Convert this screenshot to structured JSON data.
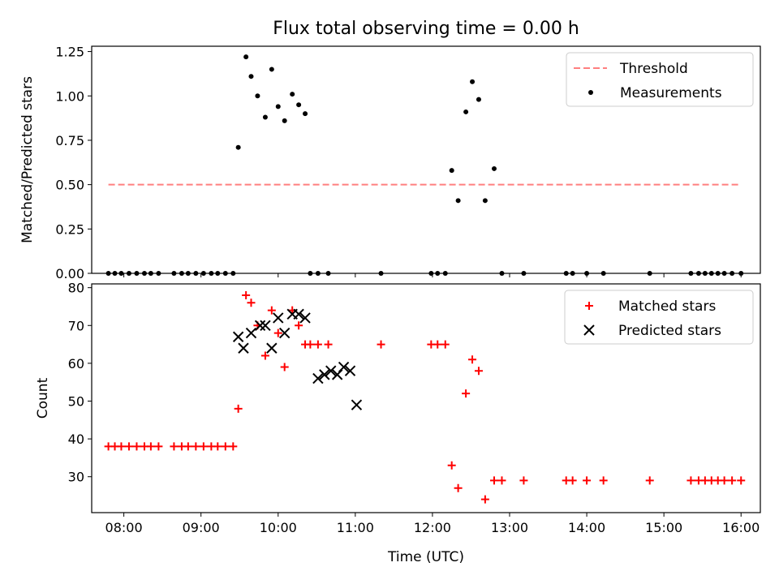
{
  "chart_data": [
    {
      "type": "scatter",
      "title": "Flux total observing time = 0.00 h",
      "xlabel": "",
      "ylabel": "Matched/Predicted stars",
      "xlim": [
        "07:35",
        "16:15"
      ],
      "ylim": [
        0,
        1.28
      ],
      "yticks": [
        "0.00",
        "0.25",
        "0.50",
        "0.75",
        "1.00",
        "1.25"
      ],
      "ytick_values": [
        0,
        0.25,
        0.5,
        0.75,
        1.0,
        1.25
      ],
      "legend_position": "upper right",
      "series": [
        {
          "name": "Threshold",
          "kind": "dashed-line",
          "color": "#ff7f7f",
          "x": [
            "07:48",
            "16:00"
          ],
          "y": [
            0.5,
            0.5
          ]
        },
        {
          "name": "Measurements",
          "kind": "points",
          "color": "#000000",
          "x": [
            "07:48",
            "07:53",
            "07:58",
            "08:04",
            "08:10",
            "08:16",
            "08:21",
            "08:27",
            "08:39",
            "08:45",
            "08:50",
            "08:56",
            "09:02",
            "09:08",
            "09:13",
            "09:19",
            "09:25",
            "09:29",
            "09:35",
            "09:39",
            "09:44",
            "09:50",
            "09:55",
            "10:00",
            "10:05",
            "10:11",
            "10:16",
            "10:21",
            "10:25",
            "10:31",
            "10:39",
            "11:20",
            "11:59",
            "12:04",
            "12:10",
            "12:15",
            "12:20",
            "12:26",
            "12:31",
            "12:36",
            "12:41",
            "12:48",
            "12:54",
            "13:11",
            "13:44",
            "13:49",
            "14:00",
            "14:13",
            "14:49",
            "15:21",
            "15:27",
            "15:32",
            "15:37",
            "15:42",
            "15:47",
            "15:53",
            "16:00"
          ],
          "y": [
            0,
            0,
            0,
            0,
            0,
            0,
            0,
            0,
            0,
            0,
            0,
            0,
            0,
            0,
            0,
            0,
            0,
            0.71,
            1.22,
            1.11,
            1.0,
            0.88,
            1.15,
            0.94,
            0.86,
            1.01,
            0.95,
            0.9,
            0,
            0,
            0,
            0,
            0,
            0,
            0,
            0.58,
            0.41,
            0.91,
            1.08,
            0.98,
            0.41,
            0.59,
            0,
            0,
            0,
            0,
            0,
            0,
            0,
            0,
            0,
            0,
            0,
            0,
            0,
            0,
            0
          ]
        }
      ]
    },
    {
      "type": "scatter",
      "title": "",
      "xlabel": "Time (UTC)",
      "ylabel": "Count",
      "xlim": [
        "07:35",
        "16:15"
      ],
      "ylim": [
        20.5,
        81
      ],
      "xticks": [
        "08:00",
        "09:00",
        "10:00",
        "11:00",
        "12:00",
        "13:00",
        "14:00",
        "15:00",
        "16:00"
      ],
      "yticks": [
        "30",
        "40",
        "50",
        "60",
        "70",
        "80"
      ],
      "ytick_values": [
        30,
        40,
        50,
        60,
        70,
        80
      ],
      "legend_position": "upper right",
      "series": [
        {
          "name": "Matched stars",
          "kind": "plus",
          "color": "#ff0000",
          "x": [
            "07:48",
            "07:53",
            "07:58",
            "08:04",
            "08:10",
            "08:16",
            "08:21",
            "08:27",
            "08:39",
            "08:45",
            "08:50",
            "08:56",
            "09:02",
            "09:08",
            "09:13",
            "09:19",
            "09:25",
            "09:29",
            "09:35",
            "09:39",
            "09:44",
            "09:50",
            "09:55",
            "10:00",
            "10:05",
            "10:11",
            "10:16",
            "10:21",
            "10:25",
            "10:31",
            "10:39",
            "11:20",
            "11:59",
            "12:04",
            "12:10",
            "12:15",
            "12:20",
            "12:26",
            "12:31",
            "12:36",
            "12:41",
            "12:48",
            "12:54",
            "13:11",
            "13:44",
            "13:49",
            "14:00",
            "14:13",
            "14:49",
            "15:21",
            "15:27",
            "15:32",
            "15:37",
            "15:42",
            "15:47",
            "15:53",
            "16:00"
          ],
          "y": [
            38,
            38,
            38,
            38,
            38,
            38,
            38,
            38,
            38,
            38,
            38,
            38,
            38,
            38,
            38,
            38,
            38,
            48,
            78,
            76,
            70,
            62,
            74,
            68,
            59,
            74,
            70,
            65,
            65,
            65,
            65,
            65,
            65,
            65,
            65,
            33,
            27,
            52,
            61,
            58,
            24,
            29,
            29,
            29,
            29,
            29,
            29,
            29,
            29,
            29,
            29,
            29,
            29,
            29,
            29,
            29,
            29
          ]
        },
        {
          "name": "Predicted stars",
          "kind": "x",
          "color": "#000000",
          "x": [
            "09:29",
            "09:33",
            "09:39",
            "09:46",
            "09:50",
            "09:55",
            "10:00",
            "10:05",
            "10:11",
            "10:16",
            "10:21",
            "10:31",
            "10:36",
            "10:41",
            "10:46",
            "10:51",
            "10:56",
            "11:01"
          ],
          "y": [
            67,
            64,
            68,
            70,
            70,
            64,
            72,
            68,
            73,
            73,
            72,
            56,
            57,
            58,
            57,
            59,
            58,
            49
          ]
        }
      ]
    }
  ]
}
